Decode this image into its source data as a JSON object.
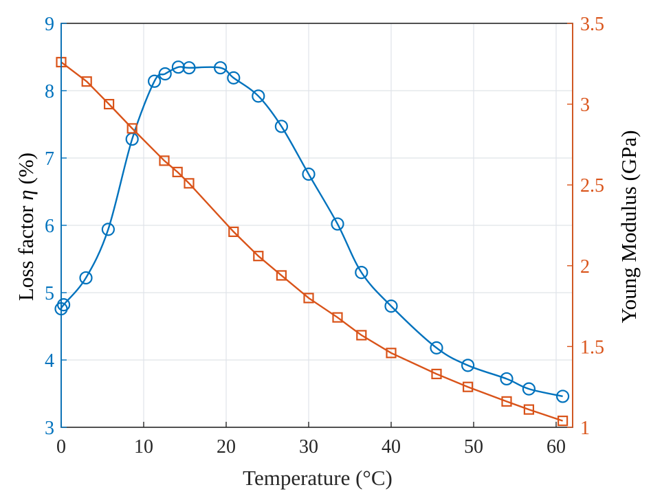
{
  "chart_data": {
    "type": "line",
    "xlabel": "Temperature (°C)",
    "ylabel_left": {
      "prefix": "Loss factor ",
      "symbol": "η",
      "suffix": " (%)"
    },
    "ylabel_right": "Young Modulus (GPa)",
    "xlim": [
      0,
      62
    ],
    "ylim_left": [
      3,
      9
    ],
    "ylim_right": [
      1,
      3.5
    ],
    "xticks": [
      "0",
      "10",
      "20",
      "30",
      "40",
      "50",
      "60"
    ],
    "yticks_left": [
      "3",
      "4",
      "5",
      "6",
      "7",
      "8",
      "9"
    ],
    "yticks_right": [
      "1",
      "1.5",
      "2",
      "2.5",
      "3",
      "3.5"
    ],
    "grid": true,
    "colors": {
      "loss": "#0072BD",
      "modulus": "#D95319",
      "grid": "#dfe3e8",
      "axis": "#262626"
    },
    "series": [
      {
        "axis": "left",
        "marker": "circle",
        "x": [
          0,
          0.3,
          3,
          5.7,
          8.6,
          11.3,
          12.6,
          14.2,
          15.5,
          19.3,
          20.9,
          23.9,
          26.7,
          30,
          33.5,
          36.4,
          40,
          45.5,
          49.3,
          54,
          56.7,
          60.8
        ],
        "y": [
          4.76,
          4.82,
          5.22,
          5.94,
          7.28,
          8.14,
          8.25,
          8.35,
          8.34,
          8.34,
          8.19,
          7.92,
          7.47,
          6.76,
          6.02,
          5.3,
          4.8,
          4.18,
          3.92,
          3.72,
          3.57,
          3.46
        ]
      },
      {
        "axis": "right",
        "marker": "square",
        "x": [
          0,
          3.1,
          5.8,
          8.6,
          12.5,
          14.1,
          15.5,
          20.9,
          23.9,
          26.7,
          30,
          33.5,
          36.4,
          40,
          45.5,
          49.3,
          54,
          56.7,
          60.8
        ],
        "y": [
          3.26,
          3.14,
          3.0,
          2.85,
          2.65,
          2.58,
          2.51,
          2.21,
          2.06,
          1.94,
          1.8,
          1.68,
          1.57,
          1.46,
          1.33,
          1.25,
          1.16,
          1.11,
          1.04
        ]
      }
    ]
  }
}
